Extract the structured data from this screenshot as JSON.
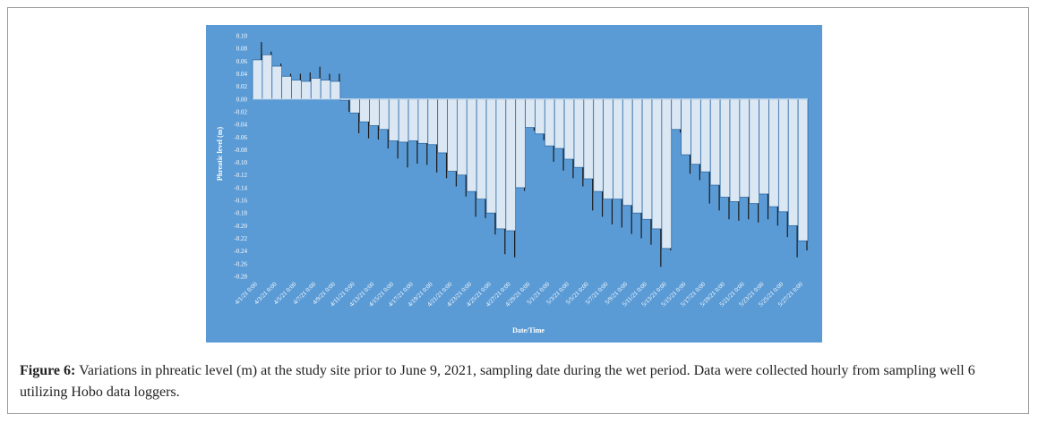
{
  "chart_data": {
    "type": "bar",
    "y_label": "Phreatic level (m)",
    "x_label": "Date/Time",
    "categories": [
      "4/1/21 0:00",
      null,
      "4/3/21 0:00",
      null,
      "4/5/21 0:00",
      null,
      "4/7/21 0:00",
      null,
      "4/9/21 0:00",
      null,
      "4/11/21 0:00",
      null,
      "4/13/21 0:00",
      null,
      "4/15/21 0:00",
      null,
      "4/17/21 0:00",
      null,
      "4/19/21 0:00",
      null,
      "4/21/21 0:00",
      null,
      "4/23/21 0:00",
      null,
      "4/25/21 0:00",
      null,
      "4/27/21 0:00",
      null,
      "4/29/21 0:00",
      null,
      "5/1/21 0:00",
      null,
      "5/3/21 0:00",
      null,
      "5/5/21 0:00",
      null,
      "5/7/21 0:00",
      null,
      "5/9/21 0:00",
      null,
      "5/11/21 0:00",
      null,
      "5/13/21 0:00",
      null,
      "5/15/21 0:00",
      null,
      "5/17/21 0:00",
      null,
      "5/19/21 0:00",
      null,
      "5/21/21 0:00",
      null,
      "5/23/21 0:00",
      null,
      "5/25/21 0:00",
      null,
      "5/27/21 0:00"
    ],
    "values": [
      0.062,
      0.07,
      0.052,
      0.036,
      0.03,
      0.028,
      0.033,
      0.03,
      0.028,
      -0.002,
      -0.022,
      -0.036,
      -0.042,
      -0.048,
      -0.066,
      -0.068,
      -0.066,
      -0.07,
      -0.072,
      -0.085,
      -0.114,
      -0.12,
      -0.146,
      -0.158,
      -0.18,
      -0.205,
      -0.208,
      -0.14,
      -0.045,
      -0.055,
      -0.074,
      -0.078,
      -0.095,
      -0.108,
      -0.126,
      -0.146,
      -0.158,
      -0.158,
      -0.168,
      -0.18,
      -0.19,
      -0.205,
      -0.236,
      -0.048,
      -0.088,
      -0.103,
      -0.115,
      -0.136,
      -0.155,
      -0.162,
      -0.155,
      -0.165,
      -0.15,
      -0.17,
      -0.178,
      -0.2,
      -0.224
    ],
    "errors": [
      0.028,
      0.005,
      0.004,
      0.004,
      0.01,
      0.014,
      0.018,
      0.01,
      0.012,
      0.018,
      0.032,
      0.026,
      0.022,
      0.03,
      0.028,
      0.04,
      0.036,
      0.034,
      0.044,
      0.04,
      0.024,
      0.034,
      0.04,
      0.03,
      0.034,
      0.04,
      0.042,
      0.005,
      0.005,
      0.01,
      0.025,
      0.035,
      0.03,
      0.03,
      0.05,
      0.04,
      0.04,
      0.045,
      0.045,
      0.04,
      0.04,
      0.06,
      0.003,
      0.005,
      0.03,
      0.025,
      0.05,
      0.04,
      0.035,
      0.03,
      0.035,
      0.03,
      0.04,
      0.03,
      0.04,
      0.05,
      0.015
    ],
    "color": "#dbe7f3",
    "error_color": "#1a1a1a",
    "background": "#5b9bd5",
    "ylim": [
      -0.28,
      0.1
    ],
    "yticks": [
      {
        "value": 0.1,
        "label": "0.10"
      },
      {
        "value": 0.08,
        "label": "0.08"
      },
      {
        "value": 0.06,
        "label": "0.06"
      },
      {
        "value": 0.04,
        "label": "0.04"
      },
      {
        "value": 0.02,
        "label": "0.02"
      },
      {
        "value": 0,
        "label": "0.00"
      },
      {
        "value": -0.02,
        "label": "-0.02"
      },
      {
        "value": -0.04,
        "label": "-0.04"
      },
      {
        "value": -0.06,
        "label": "-0.06"
      },
      {
        "value": -0.08,
        "label": "-0.08"
      },
      {
        "value": -0.1,
        "label": "-0.10"
      },
      {
        "value": -0.12,
        "label": "-0.12"
      },
      {
        "value": -0.14,
        "label": "-0.14"
      },
      {
        "value": -0.16,
        "label": "-0.16"
      },
      {
        "value": -0.18,
        "label": "-0.18"
      },
      {
        "value": -0.2,
        "label": "-0.20"
      },
      {
        "value": -0.22,
        "label": "-0.22"
      },
      {
        "value": -0.24,
        "label": "-0.24"
      },
      {
        "value": -0.26,
        "label": "-0.26"
      },
      {
        "value": -0.28,
        "label": "-0.28"
      }
    ]
  },
  "caption": {
    "label": "Figure 6:",
    "text": "Variations in phreatic level (m) at the study site prior to June 9, 2021, sampling date during the wet period. Data were collected hourly from sampling well 6 utilizing Hobo data loggers."
  }
}
